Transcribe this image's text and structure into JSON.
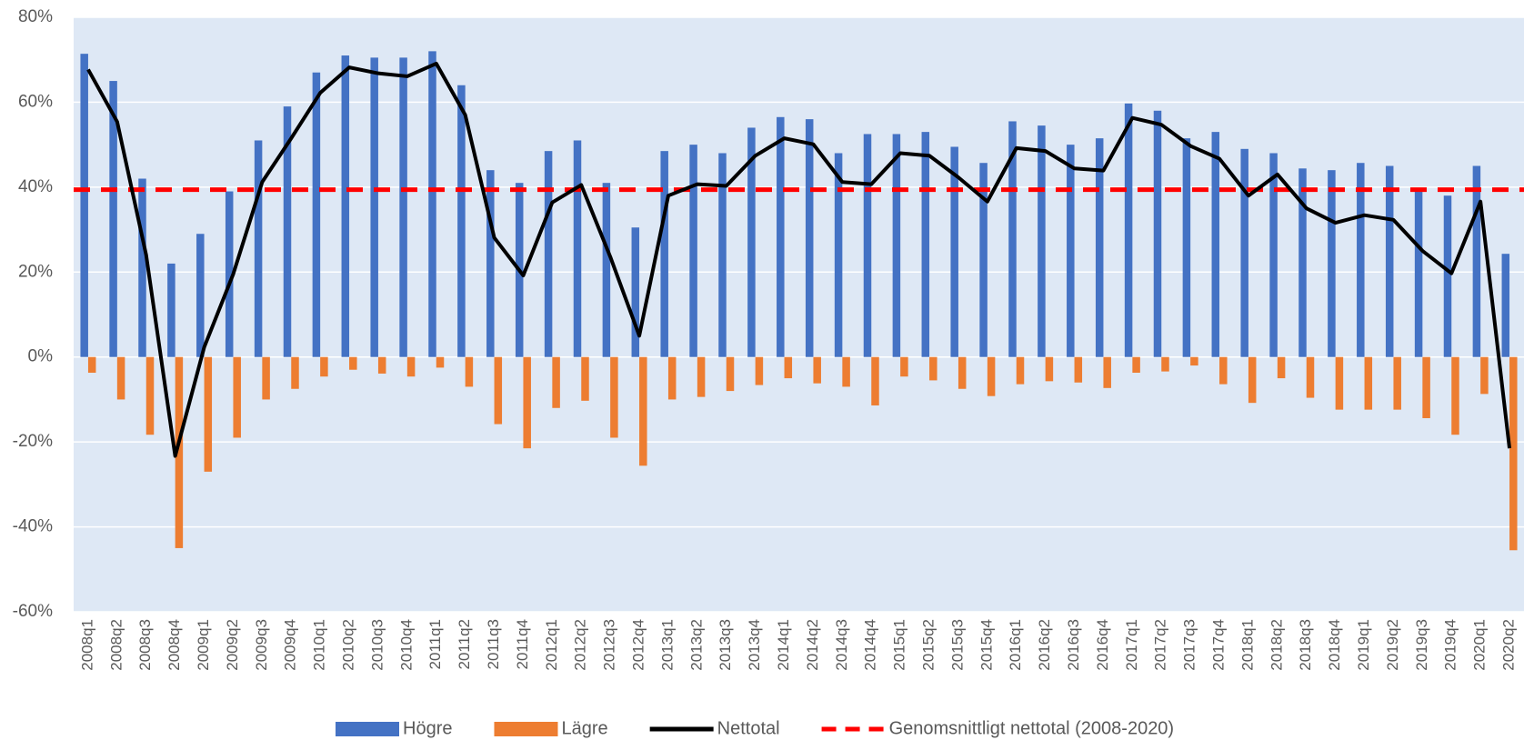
{
  "chart_data": {
    "type": "bar",
    "categories": [
      "2008q1",
      "2008q2",
      "2008q3",
      "2008q4",
      "2009q1",
      "2009q2",
      "2009q3",
      "2009q4",
      "2010q1",
      "2010q2",
      "2010q3",
      "2010q4",
      "2011q1",
      "2011q2",
      "2011q3",
      "2011q4",
      "2012q1",
      "2012q2",
      "2012q3",
      "2012q4",
      "2013q1",
      "2013q2",
      "2013q3",
      "2013q4",
      "2014q1",
      "2014q2",
      "2014q3",
      "2014q4",
      "2015q1",
      "2015q2",
      "2015q3",
      "2015q4",
      "2016q1",
      "2016q2",
      "2016q3",
      "2016q4",
      "2017q1",
      "2017q2",
      "2017q3",
      "2017q4",
      "2018q1",
      "2018q2",
      "2018q3",
      "2018q4",
      "2019q1",
      "2019q2",
      "2019q3",
      "2019q4",
      "2020q1",
      "2020q2"
    ],
    "series": [
      {
        "name": "Högre",
        "color": "#4472c4",
        "values": [
          71.4,
          65,
          42,
          22,
          29,
          39,
          51,
          59,
          67,
          71,
          70.5,
          70.5,
          72,
          64,
          44,
          41,
          48.5,
          51,
          41,
          30.5,
          48.5,
          50,
          48,
          54,
          56.5,
          56,
          48,
          52.5,
          52.5,
          53,
          49.5,
          45.7,
          55.5,
          54.5,
          50,
          51.5,
          59.7,
          58,
          51.5,
          53,
          49,
          48,
          44.4,
          44,
          45.7,
          45,
          39.3,
          38,
          45,
          24.3
        ]
      },
      {
        "name": "Lägre",
        "color": "#ed7d31",
        "values": [
          -3.7,
          -10,
          -18.3,
          -45,
          -27,
          -19,
          -10,
          -7.5,
          -4.6,
          -3,
          -3.9,
          -4.6,
          -2.5,
          -7,
          -15.8,
          -21.5,
          -12,
          -10.3,
          -19,
          -25.6,
          -10,
          -9.4,
          -8,
          -6.6,
          -5,
          -6.2,
          -7,
          -11.4,
          -4.6,
          -5.5,
          -7.5,
          -9.2,
          -6.4,
          -5.7,
          -6,
          -7.3,
          -3.7,
          -3.4,
          -2,
          -6.4,
          -10.8,
          -5,
          -9.6,
          -12.4,
          -12.4,
          -12.4,
          -14.4,
          -18.3,
          -8.7,
          -45.5
        ]
      },
      {
        "name": "Nettotal",
        "color": "#000000",
        "type": "line",
        "values": [
          67.7,
          55.4,
          24,
          -23.3,
          2.3,
          19.5,
          41.2,
          51.5,
          62.2,
          68.2,
          66.8,
          66.1,
          69.1,
          57,
          28.1,
          19.2,
          36.4,
          40.5,
          23.6,
          5,
          38,
          40.7,
          40.3,
          47.4,
          51.5,
          50.1,
          41.2,
          40.7,
          48,
          47.4,
          42.3,
          36.6,
          49.2,
          48.5,
          44.4,
          43.9,
          56.3,
          54.7,
          49.7,
          46.7,
          38,
          43,
          35,
          31.6,
          33.4,
          32.3,
          25,
          19.7,
          36.6,
          -21.5
        ]
      }
    ],
    "average": {
      "name": "Genomsnittligt nettotal (2008-2020)",
      "color": "#ff0000",
      "value": 39.4
    },
    "ylim": [
      -60,
      80
    ],
    "yticks": [
      {
        "value": -60,
        "label": "-60%"
      },
      {
        "value": -40,
        "label": "-40%"
      },
      {
        "value": -20,
        "label": "-20%"
      },
      {
        "value": 0,
        "label": "0%"
      },
      {
        "value": 20,
        "label": "20%"
      },
      {
        "value": 40,
        "label": "40%"
      },
      {
        "value": 60,
        "label": "60%"
      },
      {
        "value": 80,
        "label": "80%"
      }
    ],
    "grid": true,
    "legend": "bottom",
    "plot_background": "#dee8f5"
  }
}
